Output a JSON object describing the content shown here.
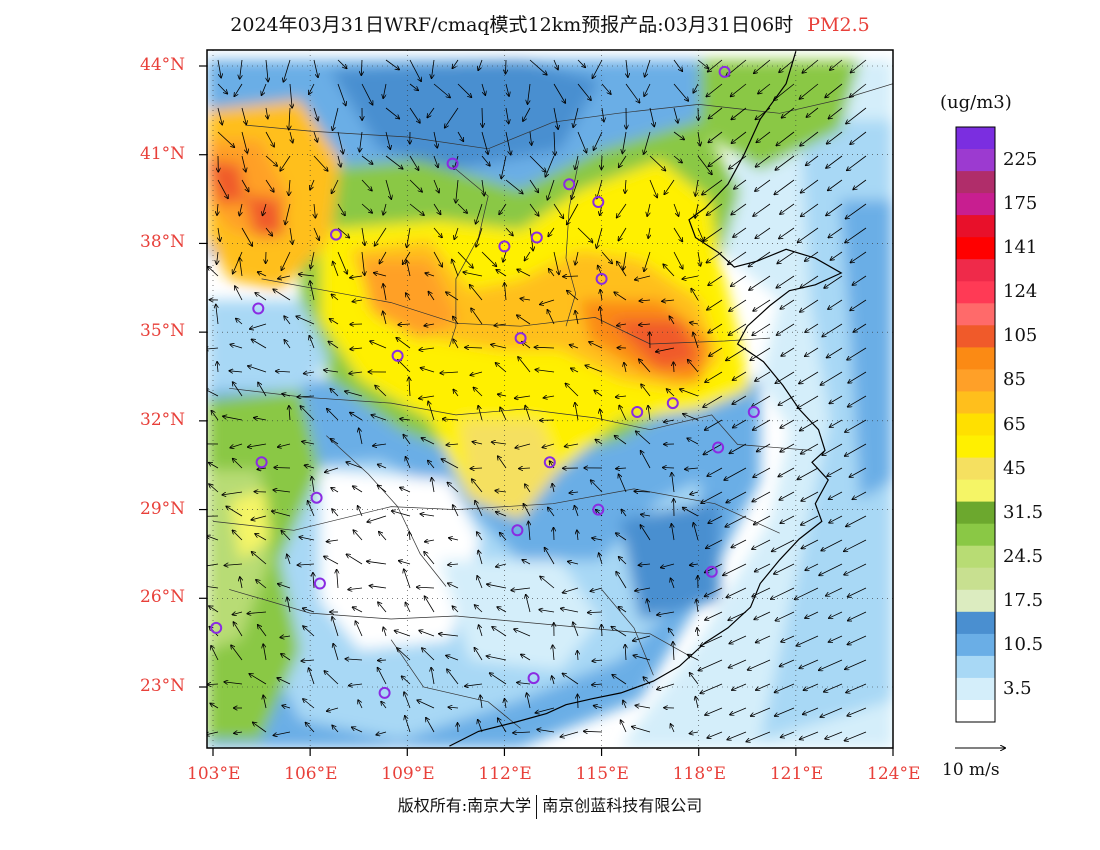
{
  "title": {
    "main": "2024年03月31日WRF/cmaq模式12km预报产品:03月31日06时",
    "variable": "PM2.5"
  },
  "map": {
    "lon_range": [
      103,
      124
    ],
    "lat_range": [
      21.0,
      44.5
    ],
    "lat_ticks": [
      {
        "value": 44,
        "label": "44°N"
      },
      {
        "value": 41,
        "label": "41°N"
      },
      {
        "value": 38,
        "label": "38°N"
      },
      {
        "value": 35,
        "label": "35°N"
      },
      {
        "value": 32,
        "label": "32°N"
      },
      {
        "value": 29,
        "label": "29°N"
      },
      {
        "value": 26,
        "label": "26°N"
      },
      {
        "value": 23,
        "label": "23°N"
      }
    ],
    "lon_ticks": [
      {
        "value": 103,
        "label": "103°E"
      },
      {
        "value": 106,
        "label": "106°E"
      },
      {
        "value": 109,
        "label": "109°E"
      },
      {
        "value": 112,
        "label": "112°E"
      },
      {
        "value": 115,
        "label": "115°E"
      },
      {
        "value": 118,
        "label": "118°E"
      },
      {
        "value": 121,
        "label": "121°E"
      },
      {
        "value": 124,
        "label": "124°E"
      }
    ],
    "cities": [
      {
        "lon": 118.8,
        "lat": 43.8
      },
      {
        "lon": 110.4,
        "lat": 40.7
      },
      {
        "lon": 114.0,
        "lat": 40.0
      },
      {
        "lon": 114.9,
        "lat": 39.4
      },
      {
        "lon": 106.8,
        "lat": 38.3
      },
      {
        "lon": 112.0,
        "lat": 37.9
      },
      {
        "lon": 113.0,
        "lat": 38.2
      },
      {
        "lon": 115.0,
        "lat": 36.8
      },
      {
        "lon": 104.4,
        "lat": 35.8
      },
      {
        "lon": 112.5,
        "lat": 34.8
      },
      {
        "lon": 108.7,
        "lat": 34.2
      },
      {
        "lon": 116.1,
        "lat": 32.3
      },
      {
        "lon": 117.2,
        "lat": 32.6
      },
      {
        "lon": 119.7,
        "lat": 32.3
      },
      {
        "lon": 118.6,
        "lat": 31.1
      },
      {
        "lon": 104.5,
        "lat": 30.6
      },
      {
        "lon": 113.4,
        "lat": 30.6
      },
      {
        "lon": 106.2,
        "lat": 29.4
      },
      {
        "lon": 114.9,
        "lat": 29.0
      },
      {
        "lon": 112.4,
        "lat": 28.3
      },
      {
        "lon": 106.3,
        "lat": 26.5
      },
      {
        "lon": 118.4,
        "lat": 26.9
      },
      {
        "lon": 103.1,
        "lat": 25.0
      },
      {
        "lon": 108.3,
        "lat": 22.8
      },
      {
        "lon": 112.9,
        "lat": 23.3
      }
    ],
    "coastline": [
      [
        121.0,
        44.5
      ],
      [
        120.7,
        43.4
      ],
      [
        119.9,
        42.2
      ],
      [
        119.4,
        41.0
      ],
      [
        118.9,
        40.0
      ],
      [
        118.2,
        39.2
      ],
      [
        117.7,
        38.8
      ],
      [
        117.9,
        38.2
      ],
      [
        118.6,
        37.7
      ],
      [
        119.1,
        37.2
      ],
      [
        119.8,
        37.4
      ],
      [
        120.7,
        37.8
      ],
      [
        121.6,
        37.5
      ],
      [
        122.4,
        37.0
      ],
      [
        121.6,
        36.6
      ],
      [
        120.8,
        36.4
      ],
      [
        120.2,
        35.9
      ],
      [
        119.5,
        35.2
      ],
      [
        119.2,
        34.6
      ],
      [
        120.0,
        34.0
      ],
      [
        120.6,
        33.2
      ],
      [
        121.1,
        32.4
      ],
      [
        121.7,
        31.7
      ],
      [
        121.9,
        31.0
      ],
      [
        121.5,
        30.6
      ],
      [
        122.0,
        30.0
      ],
      [
        121.6,
        29.2
      ],
      [
        121.8,
        28.6
      ],
      [
        121.1,
        28.0
      ],
      [
        120.5,
        27.3
      ],
      [
        119.9,
        26.5
      ],
      [
        119.6,
        25.7
      ],
      [
        118.9,
        25.0
      ],
      [
        118.2,
        24.5
      ],
      [
        117.4,
        23.7
      ],
      [
        116.6,
        23.2
      ],
      [
        115.6,
        22.8
      ],
      [
        114.7,
        22.6
      ],
      [
        113.9,
        22.4
      ],
      [
        113.3,
        22.1
      ],
      [
        112.3,
        21.8
      ],
      [
        111.2,
        21.5
      ],
      [
        110.3,
        21.0
      ]
    ],
    "boundaries": [
      [
        [
          104.0,
          42.0
        ],
        [
          106.0,
          41.8
        ],
        [
          109.0,
          41.6
        ],
        [
          111.5,
          41.2
        ],
        [
          113.5,
          42.1
        ],
        [
          115.5,
          42.4
        ],
        [
          118.0,
          42.7
        ],
        [
          120.5,
          42.4
        ],
        [
          122.5,
          42.9
        ],
        [
          124.0,
          43.4
        ]
      ],
      [
        [
          110.4,
          40.6
        ],
        [
          111.5,
          39.6
        ],
        [
          111.2,
          38.2
        ],
        [
          110.5,
          36.8
        ],
        [
          110.5,
          35.2
        ],
        [
          110.3,
          34.5
        ]
      ],
      [
        [
          114.3,
          40.8
        ],
        [
          114.0,
          39.2
        ],
        [
          113.9,
          37.5
        ],
        [
          114.2,
          36.3
        ],
        [
          113.9,
          35.2
        ]
      ],
      [
        [
          104.5,
          36.8
        ],
        [
          106.5,
          36.4
        ],
        [
          108.5,
          36.0
        ],
        [
          110.5,
          35.3
        ],
        [
          112.5,
          35.2
        ],
        [
          114.8,
          35.5
        ],
        [
          116.5,
          34.6
        ],
        [
          118.8,
          34.7
        ],
        [
          120.2,
          34.8
        ]
      ],
      [
        [
          103.5,
          33.1
        ],
        [
          105.8,
          32.8
        ],
        [
          108.5,
          32.6
        ],
        [
          110.5,
          32.2
        ],
        [
          112.6,
          32.4
        ],
        [
          114.8,
          32.1
        ],
        [
          116.5,
          31.7
        ],
        [
          118.4,
          32.2
        ],
        [
          119.2,
          31.2
        ],
        [
          121.5,
          31.0
        ]
      ],
      [
        [
          103.0,
          28.6
        ],
        [
          105.5,
          28.3
        ],
        [
          108.5,
          29.1
        ],
        [
          110.5,
          29.0
        ],
        [
          113.5,
          29.2
        ],
        [
          116.0,
          29.7
        ],
        [
          118.5,
          29.2
        ],
        [
          120.5,
          28.2
        ]
      ],
      [
        [
          103.5,
          26.3
        ],
        [
          106.0,
          25.5
        ],
        [
          108.5,
          25.3
        ],
        [
          110.5,
          25.4
        ],
        [
          113.5,
          25.1
        ],
        [
          116.5,
          24.8
        ],
        [
          117.8,
          24.0
        ]
      ],
      [
        [
          108.5,
          24.6
        ],
        [
          109.5,
          23.0
        ],
        [
          111.5,
          22.5
        ],
        [
          112.5,
          21.6
        ]
      ],
      [
        [
          106.5,
          31.5
        ],
        [
          107.8,
          30.2
        ],
        [
          108.7,
          29.1
        ],
        [
          109.4,
          27.5
        ],
        [
          110.2,
          26.4
        ]
      ],
      [
        [
          115.0,
          26.3
        ],
        [
          116.0,
          25.0
        ],
        [
          116.6,
          23.4
        ]
      ]
    ]
  },
  "colorbar": {
    "unit": "(ug/m3)",
    "levels": [
      {
        "color": "#7b2ee0",
        "label": ""
      },
      {
        "color": "#9c3ad0",
        "label": "225"
      },
      {
        "color": "#b02d6a",
        "label": ""
      },
      {
        "color": "#c81e90",
        "label": "175"
      },
      {
        "color": "#e8102a",
        "label": ""
      },
      {
        "color": "#ff0000",
        "label": "141"
      },
      {
        "color": "#ef2a4a",
        "label": ""
      },
      {
        "color": "#ff3a55",
        "label": "124"
      },
      {
        "color": "#ff6a6a",
        "label": ""
      },
      {
        "color": "#f05a2a",
        "label": "105"
      },
      {
        "color": "#fb8a14",
        "label": ""
      },
      {
        "color": "#ffa028",
        "label": "85"
      },
      {
        "color": "#ffbf1c",
        "label": ""
      },
      {
        "color": "#ffe000",
        "label": "65"
      },
      {
        "color": "#fff000",
        "label": ""
      },
      {
        "color": "#f5e060",
        "label": "45"
      },
      {
        "color": "#f5f566",
        "label": ""
      },
      {
        "color": "#6ca82e",
        "label": "31.5"
      },
      {
        "color": "#8ac845",
        "label": ""
      },
      {
        "color": "#b8dc74",
        "label": "24.5"
      },
      {
        "color": "#c8e090",
        "label": ""
      },
      {
        "color": "#dcecc0",
        "label": "17.5"
      },
      {
        "color": "#4a8fd0",
        "label": ""
      },
      {
        "color": "#6aaee6",
        "label": "10.5"
      },
      {
        "color": "#a8d8f5",
        "label": ""
      },
      {
        "color": "#d4eefa",
        "label": "3.5"
      },
      {
        "color": "#ffffff",
        "label": ""
      }
    ]
  },
  "wind_reference": {
    "label": "10 m/s"
  },
  "copyright": {
    "left": "版权所有:南京大学",
    "right": "南京创蓝科技有限公司"
  }
}
